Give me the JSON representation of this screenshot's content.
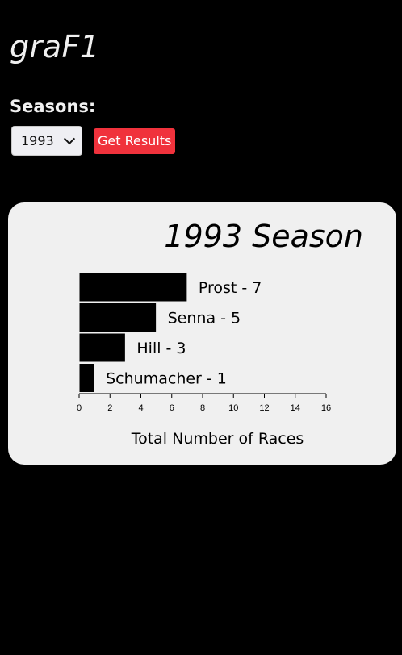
{
  "app": {
    "logo": "graF1"
  },
  "filters": {
    "seasons_label": "Seasons:",
    "selected_season": "1993",
    "get_results_label": "Get Results"
  },
  "colors": {
    "background": "#000000",
    "button": "#f0323c",
    "card": "#f0f0f0",
    "bar": "#000000"
  },
  "chart_data": {
    "type": "bar",
    "orientation": "horizontal",
    "title": "1993 Season",
    "xlabel": "Total Number of Races",
    "ylabel": "",
    "categories": [
      "Prost",
      "Senna",
      "Hill",
      "Schumacher"
    ],
    "values": [
      7,
      5,
      3,
      1
    ],
    "labels": [
      "Prost - 7",
      "Senna - 5",
      "Hill - 3",
      "Schumacher - 1"
    ],
    "xlim": [
      0,
      16
    ],
    "xticks": [
      0,
      2,
      4,
      6,
      8,
      10,
      12,
      14,
      16
    ],
    "grid": false,
    "legend": "none"
  }
}
